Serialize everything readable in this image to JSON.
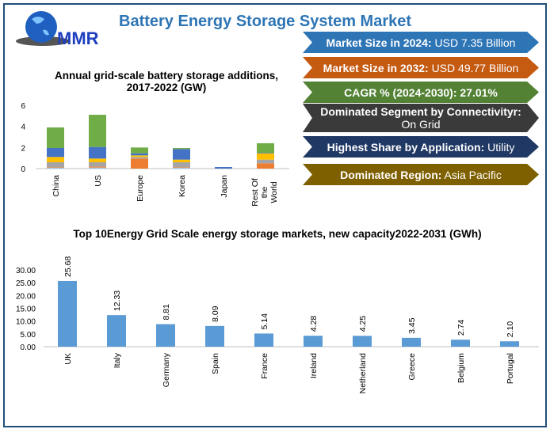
{
  "header": {
    "title": "Battery Energy Storage System Market",
    "logo_text": "MMR"
  },
  "highlights": [
    {
      "label": "Market Size in 2024:",
      "value": " USD 7.35 Billion",
      "color": "#2e75b6"
    },
    {
      "label": "Market Size in 2032:",
      "value": " USD 49.77 Billion",
      "color": "#c55a11"
    },
    {
      "label": "CAGR % (2024-2030): 27.01%",
      "value": "",
      "color": "#548235"
    },
    {
      "label": "Dominated Segment by Connectivityr:",
      "value": "On Grid",
      "color": "#3a3a3a"
    },
    {
      "label": "Highest Share by Application:",
      "value": " Utility",
      "color": "#203864"
    },
    {
      "label": "Dominated Region:",
      "value": " Asia Pacific",
      "color": "#7f6000"
    }
  ],
  "chart_data": [
    {
      "type": "bar",
      "stacked": true,
      "title": "Annual grid-scale battery storage additions, 2017-2022 (GW)",
      "categories": [
        "China",
        "US",
        "Europe",
        "Korea",
        "Japan",
        "Rest Of the World"
      ],
      "ylim": [
        0,
        6
      ],
      "yticks": [
        "0",
        "2",
        "4",
        "6"
      ],
      "grid": false,
      "series": [
        {
          "color": "#9dc3e6",
          "values": [
            0.1,
            0.1,
            0,
            0.1,
            0,
            0
          ]
        },
        {
          "color": "#ed7d31",
          "values": [
            0.05,
            0.1,
            0.95,
            0.05,
            0,
            0.5
          ]
        },
        {
          "color": "#a5a5a5",
          "values": [
            0.45,
            0.4,
            0.15,
            0.45,
            0,
            0.35
          ]
        },
        {
          "color": "#ffc000",
          "values": [
            0.5,
            0.35,
            0.15,
            0.25,
            0,
            0.6
          ]
        },
        {
          "color": "#4472c4",
          "values": [
            0.85,
            1.1,
            0.2,
            1.0,
            0.15,
            0.05
          ]
        },
        {
          "color": "#70ad47",
          "values": [
            1.95,
            3.05,
            0.55,
            0.1,
            0,
            0.9
          ]
        }
      ]
    },
    {
      "type": "bar",
      "title": "Top 10Energy Grid Scale energy storage markets, new capacity2022-2031 (GWh)",
      "categories": [
        "UK",
        "Italy",
        "Germany",
        "Spain",
        "France",
        "Ireland",
        "Netherland",
        "Greece",
        "Belgium",
        "Portugal"
      ],
      "values": [
        25.68,
        12.33,
        8.81,
        8.09,
        5.14,
        4.28,
        4.25,
        3.45,
        2.74,
        2.1
      ],
      "data_labels": [
        "25.68",
        "12.33",
        "8.81",
        "8.09",
        "5.14",
        "4.28",
        "4.25",
        "3.45",
        "2.74",
        "2.10"
      ],
      "ylim": [
        0,
        30
      ],
      "yticks": [
        "0.00",
        "5.00",
        "10.00",
        "15.00",
        "20.00",
        "25.00",
        "30.00"
      ],
      "color": "#5b9bd5",
      "grid": false
    }
  ]
}
